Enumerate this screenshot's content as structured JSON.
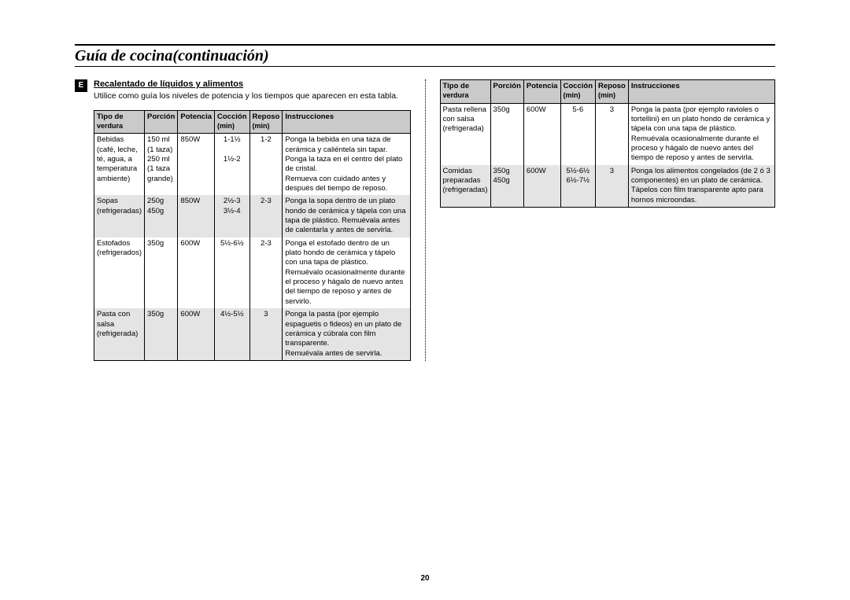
{
  "page_number": "20",
  "title": "Guía de cocina(continuación)",
  "badge": "E",
  "subheading": "Recalentado de líquidos y alimentos",
  "intro": "Utilice como guía los niveles de potencia y los tiempos que aparecen en esta tabla.",
  "headers": {
    "c1a": "Tipo de",
    "c1b": "verdura",
    "c2": "Porción",
    "c3": "Potencia",
    "c4a": "Cocción",
    "c4b": "(min)",
    "c5a": "Reposo",
    "c5b": "(min)",
    "c6": "Instrucciones"
  },
  "left_rows": [
    {
      "alt": false,
      "tipo": "Bebidas\n(café, leche,\nté, agua, a\ntemperatura\nambiente)",
      "porcion": "150 ml\n(1 taza)\n250 ml\n(1 taza\ngrande)",
      "potencia": "850W",
      "coccion": "1-1½\n\n1½-2",
      "reposo": "1-2",
      "instr": "Ponga la bebida en una taza de cerámica y caliéntela sin tapar.\nPonga la taza en el centro del plato de cristal.\nRemueva con cuidado antes y después del tiempo de reposo."
    },
    {
      "alt": true,
      "tipo": "Sopas\n(refrigeradas)",
      "porcion": "250g\n450g",
      "potencia": "850W",
      "coccion": "2½-3\n3½-4",
      "reposo": "2-3",
      "instr": "Ponga la sopa dentro de un plato hondo de cerámica y tápela con una tapa de plástico. Remuévala antes de calentarla y antes de servirla."
    },
    {
      "alt": false,
      "tipo": "Estofados\n(refrigerados)",
      "porcion": "350g",
      "potencia": "600W",
      "coccion": "5½-6½",
      "reposo": "2-3",
      "instr": "Ponga el estofado dentro de un plato hondo de cerámica y tápelo con una tapa de plástico.\nRemuévalo ocasionalmente durante el proceso y hágalo de nuevo antes del tiempo de reposo y antes de servirlo."
    },
    {
      "alt": true,
      "tipo": "Pasta con\nsalsa\n(refrigerada)",
      "porcion": "350g",
      "potencia": "600W",
      "coccion": "4½-5½",
      "reposo": "3",
      "instr": "Ponga la pasta (por ejemplo espaguetis o fideos) en un plato de cerámica y cúbrala con film transparente.\nRemuévala antes de servirla."
    }
  ],
  "right_rows": [
    {
      "alt": false,
      "tipo": "Pasta rellena\ncon salsa\n(refrigerada)",
      "porcion": "350g",
      "potencia": "600W",
      "coccion": "5-6",
      "reposo": "3",
      "instr": "Ponga la pasta (por ejemplo ravioles o tortellini) en un plato hondo de cerámica y tápela con una tapa de plástico.\nRemuévala ocasionalmente durante el proceso y hágalo de nuevo antes del tiempo de reposo y antes de servirla."
    },
    {
      "alt": true,
      "tipo": "Comidas\npreparadas\n(refrigeradas)",
      "porcion": "350g\n450g",
      "potencia": "600W",
      "coccion": "5½-6½\n6½-7½",
      "reposo": "3",
      "instr": "Ponga los alimentos congelados (de 2 ó 3 componentes) en un plato de cerámica.\nTápelos con film transparente apto para hornos microondas."
    }
  ]
}
